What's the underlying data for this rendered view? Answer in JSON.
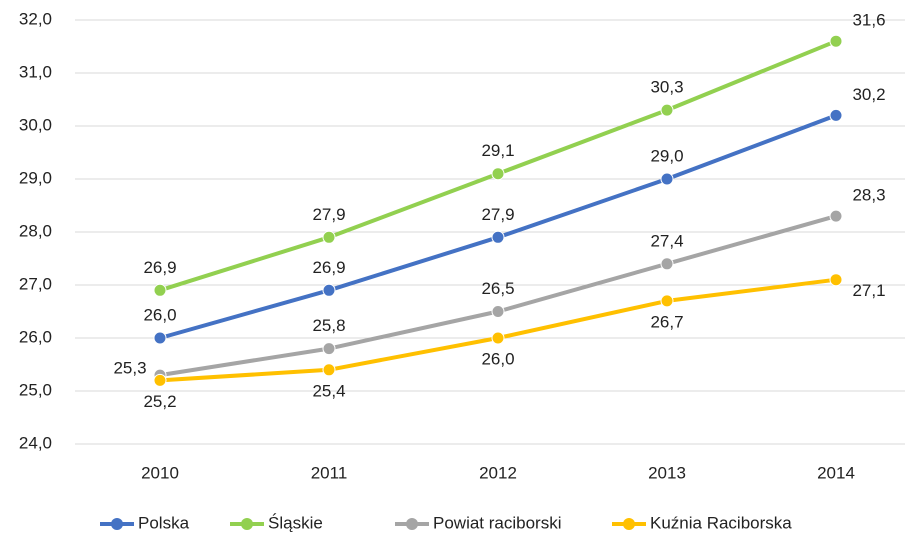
{
  "chart_data": {
    "type": "line",
    "categories": [
      "2010",
      "2011",
      "2012",
      "2013",
      "2014"
    ],
    "series": [
      {
        "name": "Polska",
        "color": "#4472c4",
        "values": [
          26.0,
          26.9,
          27.9,
          29.0,
          30.2
        ],
        "value_labels": [
          "26,0",
          "26,9",
          "27,9",
          "29,0",
          "30,2"
        ]
      },
      {
        "name": "Śląskie",
        "color": "#92d050",
        "values": [
          26.9,
          27.9,
          29.1,
          30.3,
          31.6
        ],
        "value_labels": [
          "26,9",
          "27,9",
          "29,1",
          "30,3",
          "31,6"
        ]
      },
      {
        "name": "Powiat raciborski",
        "color": "#a5a5a5",
        "values": [
          25.3,
          25.8,
          26.5,
          27.4,
          28.3
        ],
        "value_labels": [
          "25,3",
          "25,8",
          "26,5",
          "27,4",
          "28,3"
        ]
      },
      {
        "name": "Kuźnia Raciborska",
        "color": "#ffc000",
        "values": [
          25.2,
          25.4,
          26.0,
          26.7,
          27.1
        ],
        "value_labels": [
          "25,2",
          "25,4",
          "26,0",
          "26,7",
          "27,1"
        ]
      }
    ],
    "ylim": [
      24,
      32
    ],
    "yticks": [
      {
        "value": 24,
        "label": "24,0"
      },
      {
        "value": 25,
        "label": "25,0"
      },
      {
        "value": 26,
        "label": "26,0"
      },
      {
        "value": 27,
        "label": "27,0"
      },
      {
        "value": 28,
        "label": "28,0"
      },
      {
        "value": 29,
        "label": "29,0"
      },
      {
        "value": 30,
        "label": "30,0"
      },
      {
        "value": 31,
        "label": "31,0"
      },
      {
        "value": 32,
        "label": "32,0"
      }
    ],
    "grid": true,
    "legend": "bottom"
  }
}
